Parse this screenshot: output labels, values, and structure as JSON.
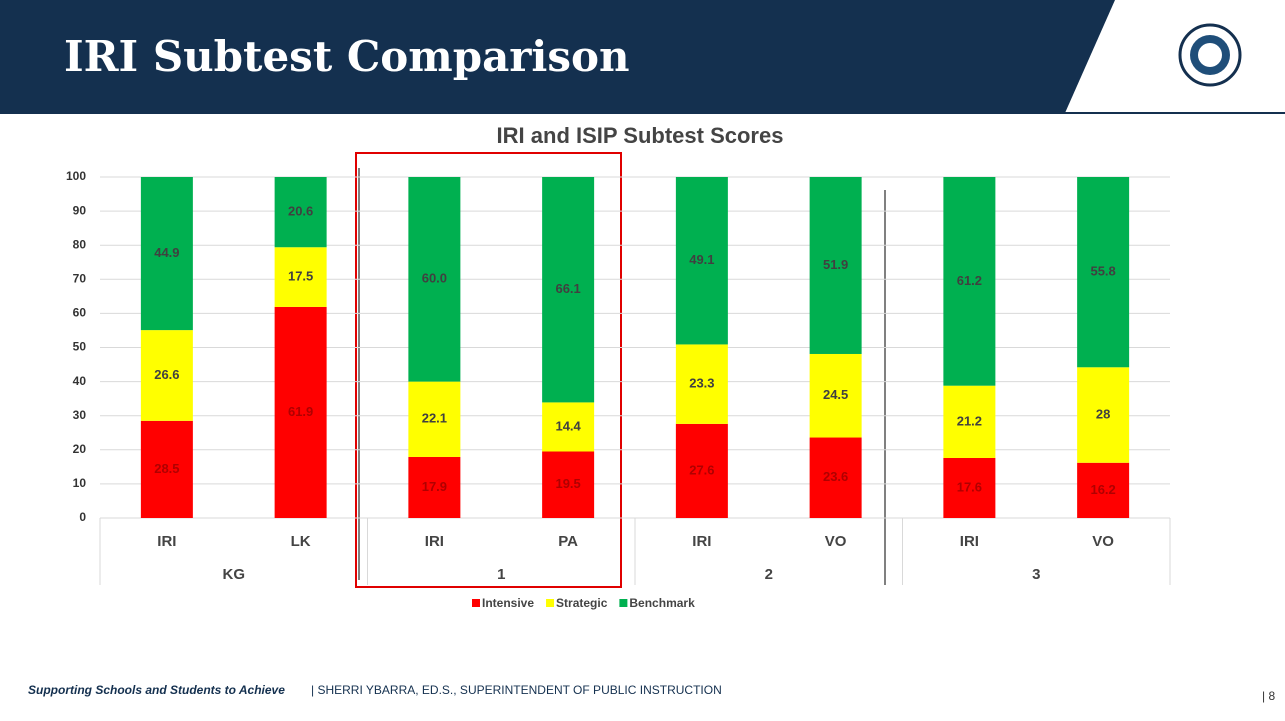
{
  "slide": {
    "title": "IRI Subtest Comparison",
    "footer_tagline": "Supporting Schools and Students to Achieve",
    "footer_text": "| SHERRI YBARRA, ED.S., SUPERINTENDENT OF PUBLIC INSTRUCTION",
    "page_number": "| 8"
  },
  "chart_data": {
    "type": "stacked_bar",
    "title": "IRI and  ISIP Subtest Scores",
    "categories": [
      "IRI",
      "LK",
      "IRI",
      "PA",
      "IRI",
      "VO",
      "IRI",
      "VO"
    ],
    "groups": [
      "KG",
      "1",
      "2",
      "3"
    ],
    "series": [
      {
        "name": "Intensive",
        "color": "#ff0000",
        "values": [
          28.5,
          61.9,
          17.9,
          19.5,
          27.6,
          23.6,
          17.6,
          16.2
        ]
      },
      {
        "name": "Strategic",
        "color": "#ffff00",
        "values": [
          26.6,
          17.5,
          22.1,
          14.4,
          23.3,
          24.5,
          21.2,
          28
        ]
      },
      {
        "name": "Benchmark",
        "color": "#00b050",
        "values": [
          44.9,
          20.6,
          60.0,
          66.1,
          49.1,
          51.9,
          61.2,
          55.8
        ],
        "value_labels": [
          "44.9",
          "20.6",
          "60.0",
          "66.1",
          "49.1",
          "51.9",
          "61.2",
          "55.8"
        ]
      }
    ],
    "ylim": [
      0,
      100
    ],
    "yticks": [
      0,
      10,
      20,
      30,
      40,
      50,
      60,
      70,
      80,
      90,
      100
    ],
    "grid": true,
    "legend": "bottom"
  }
}
